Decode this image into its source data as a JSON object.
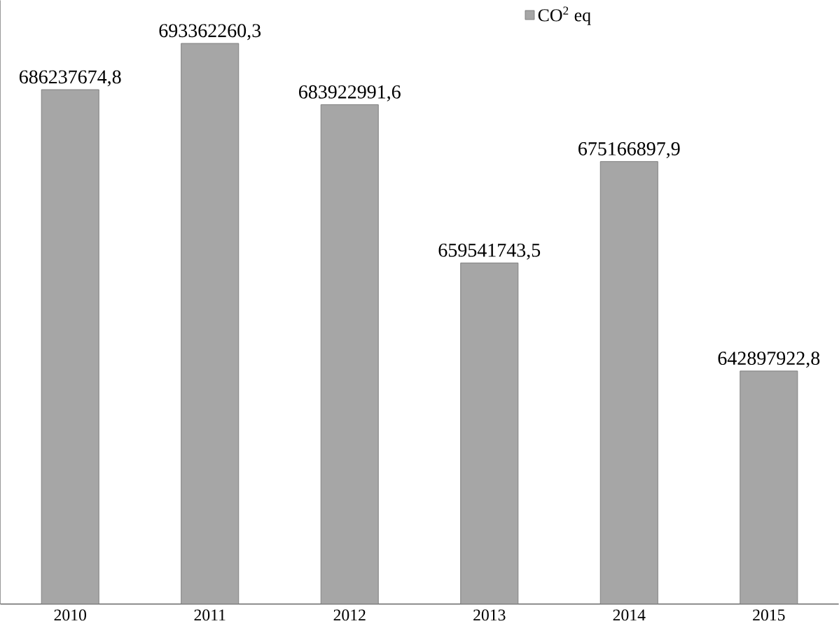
{
  "chart_data": {
    "type": "bar",
    "categories": [
      "2010",
      "2011",
      "2012",
      "2013",
      "2014",
      "2015"
    ],
    "series": [
      {
        "name": "CO$^{2}$ eq",
        "color": "#a6a6a6",
        "values": [
          686237674.8,
          693362260.3,
          683922991.6,
          659541743.5,
          675166897.9,
          642897922.8
        ],
        "value_labels": [
          "686237674,8",
          "693362260,3",
          "683922991,6",
          "659541743,5",
          "675166897,9",
          "642897922,8"
        ]
      }
    ],
    "ylim": [
      607000000,
      700000000
    ],
    "tick_labels": "x",
    "legend": "top right",
    "grid": false
  }
}
